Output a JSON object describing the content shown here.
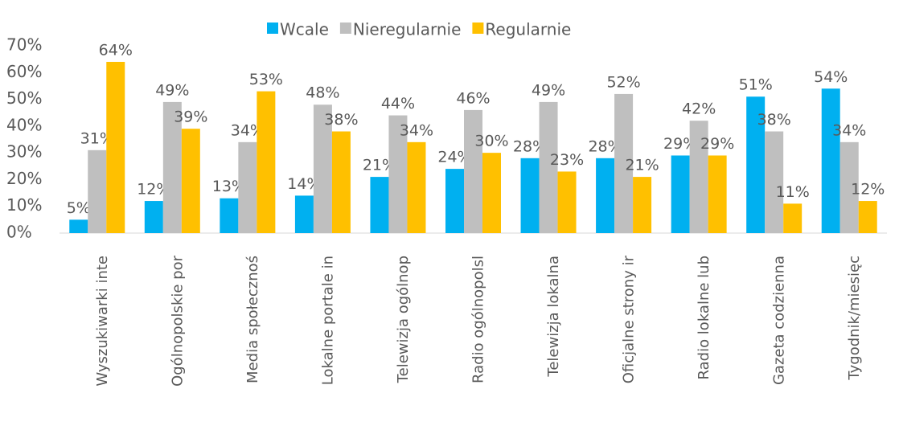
{
  "chart_data": {
    "type": "bar",
    "categories": [
      "Wyszukiwarki inte",
      "Ogólnopolskie por",
      "Media społecznoś",
      "Lokalne portale in",
      "Telewizja ogólnop",
      "Radio ogólnopolsl",
      "Telewizja lokalna",
      "Oficjalne strony ir",
      "Radio lokalne lub",
      "Gazeta codzienna",
      "Tygodnik/miesięc"
    ],
    "series": [
      {
        "name": "Wcale",
        "color": "#00b0f0",
        "values": [
          5,
          12,
          13,
          14,
          21,
          24,
          28,
          28,
          29,
          51,
          54
        ],
        "value_labels": [
          "5%",
          "12%",
          "13%",
          "14%",
          "21%",
          "24%",
          "28%",
          "28%",
          "29%",
          "51%",
          "54%"
        ]
      },
      {
        "name": "Nieregularnie",
        "color": "#bfbfbf",
        "values": [
          31,
          49,
          34,
          48,
          44,
          46,
          49,
          52,
          42,
          38,
          34
        ],
        "value_labels": [
          "31%",
          "49%",
          "34%",
          "48%",
          "44%",
          "46%",
          "49%",
          "52%",
          "42%",
          "38%",
          "34%"
        ]
      },
      {
        "name": "Regularnie",
        "color": "#ffc000",
        "values": [
          64,
          39,
          53,
          38,
          34,
          30,
          23,
          21,
          29,
          11,
          12
        ],
        "value_labels": [
          "64%",
          "39%",
          "53%",
          "38%",
          "34%",
          "30%",
          "23%",
          "21%",
          "29%",
          "11%",
          "12%"
        ]
      }
    ],
    "ylim": [
      0,
      70
    ],
    "yticks": [
      {
        "value": 0,
        "label": "0%"
      },
      {
        "value": 10,
        "label": "10%"
      },
      {
        "value": 20,
        "label": "20%"
      },
      {
        "value": 30,
        "label": "30%"
      },
      {
        "value": 40,
        "label": "40%"
      },
      {
        "value": 50,
        "label": "50%"
      },
      {
        "value": 60,
        "label": "60%"
      },
      {
        "value": 70,
        "label": "70%"
      }
    ],
    "grid": false,
    "legend": "top"
  }
}
